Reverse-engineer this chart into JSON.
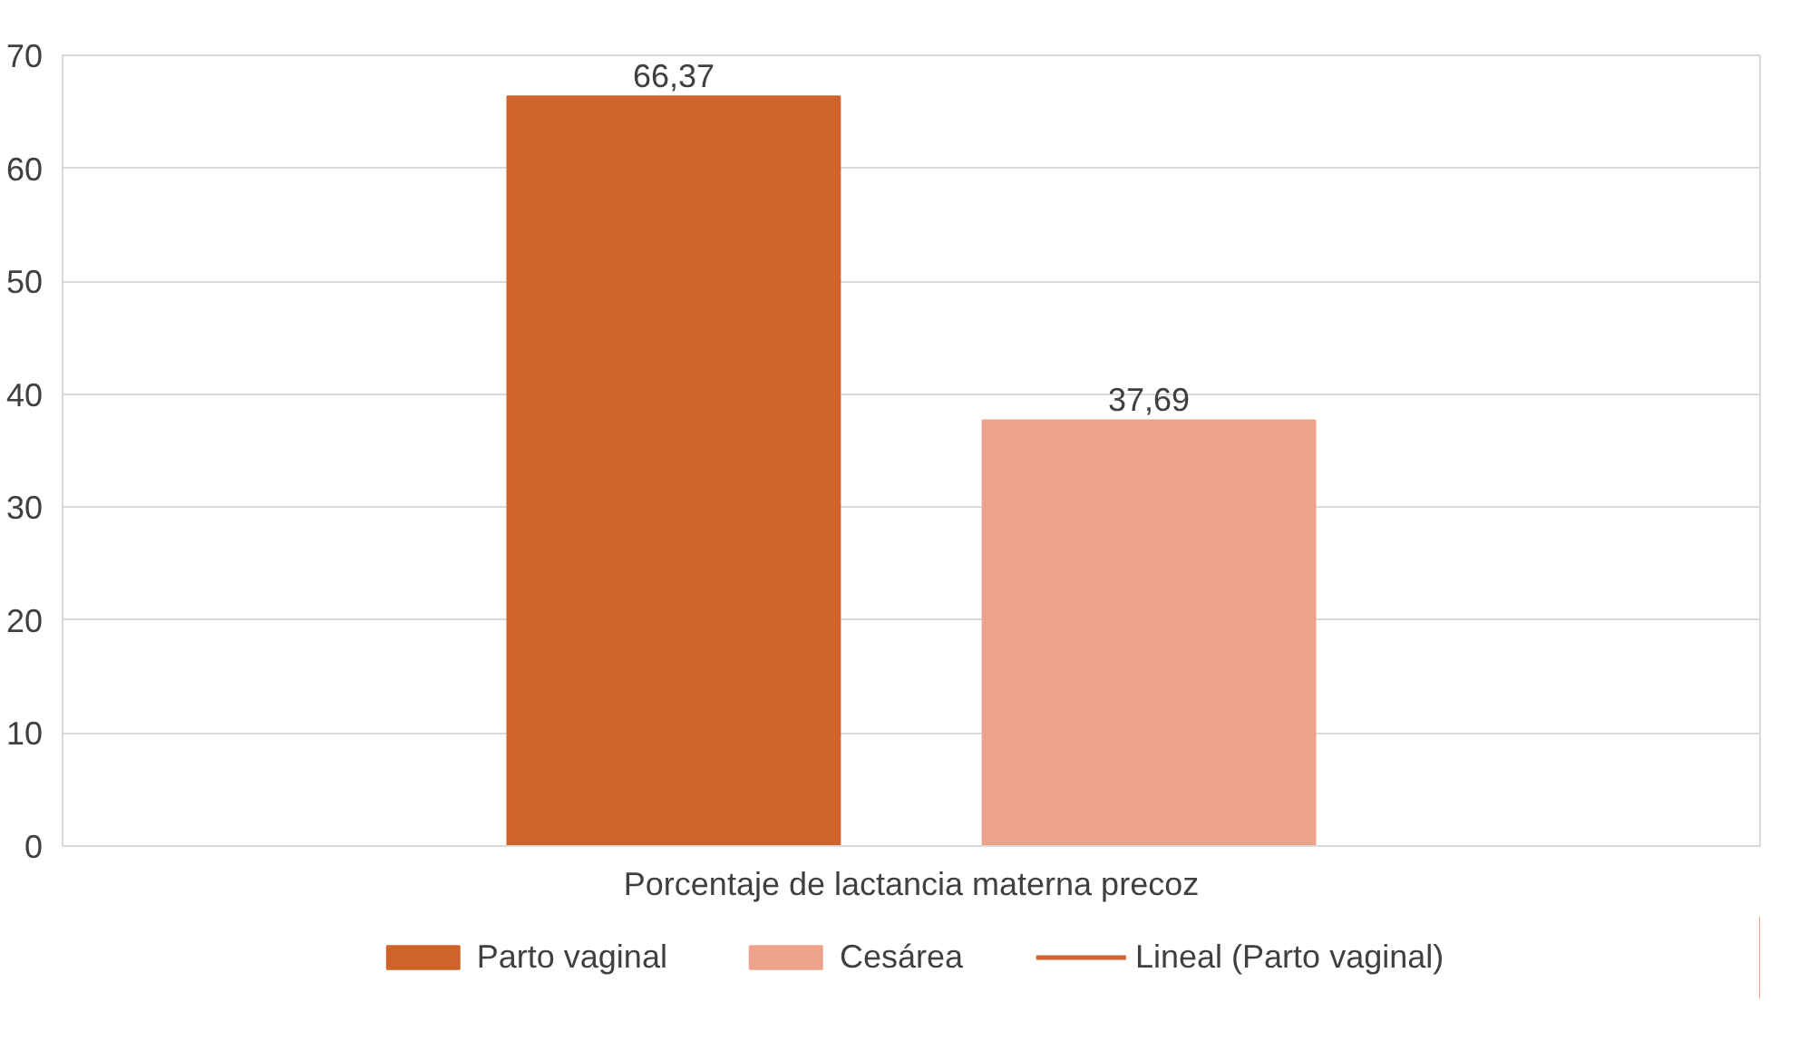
{
  "chart_data": {
    "type": "bar",
    "categories": [
      "Porcentaje de lactancia materna precoz"
    ],
    "series": [
      {
        "name": "Parto vaginal",
        "color": "#d0622c",
        "values": [
          66.37
        ],
        "value_labels": [
          "66,37"
        ]
      },
      {
        "name": "Cesárea",
        "color": "#eda28b",
        "values": [
          37.69
        ],
        "value_labels": [
          "37,69"
        ]
      },
      {
        "name": "Lineal (Parto vaginal)",
        "type": "line",
        "color": "#d0622c",
        "values": [
          null
        ]
      }
    ],
    "ylim": [
      0,
      70
    ],
    "yticks": [
      0,
      10,
      20,
      30,
      40,
      50,
      60,
      70
    ],
    "grid": "y",
    "legend": "bottom"
  }
}
